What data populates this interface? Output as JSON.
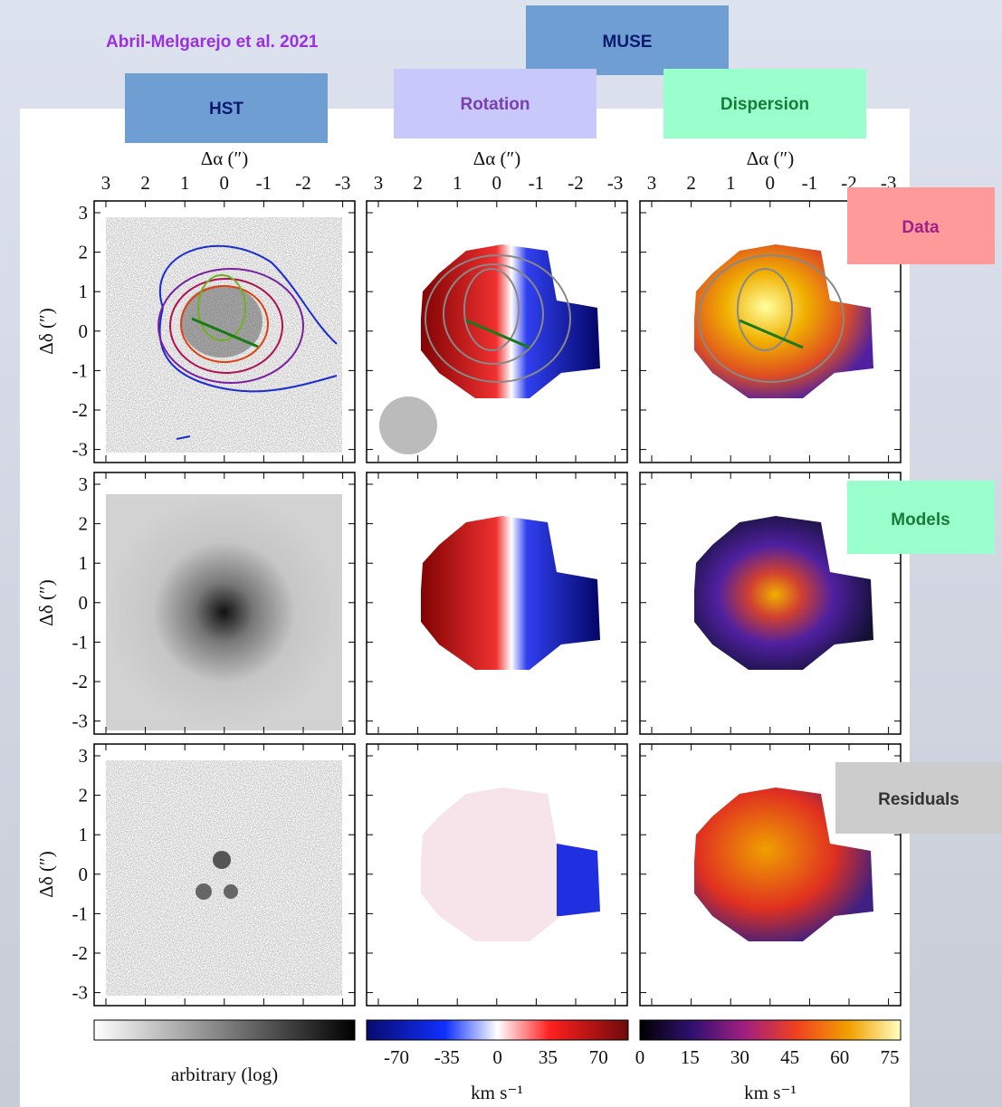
{
  "citation": "Abril-Melgarejo et al. 2021",
  "labels": {
    "muse": "MUSE",
    "hst": "HST",
    "rotation": "Rotation",
    "dispersion": "Dispersion",
    "data": "Data",
    "models": "Models",
    "residuals": "Residuals"
  },
  "figure": {
    "x_axis_label": "Δα (″)",
    "y_axis_label": "Δδ (″)",
    "ticks": [
      "3",
      "2",
      "1",
      "0",
      "-1",
      "-2",
      "-3"
    ],
    "colorbars": [
      {
        "label": "arbitrary (log)"
      },
      {
        "ticks": [
          "-70",
          "-35",
          "0",
          "35",
          "70"
        ],
        "unit": "km s⁻¹"
      },
      {
        "ticks": [
          "0",
          "15",
          "30",
          "45",
          "60",
          "75"
        ],
        "unit": "km s⁻¹"
      }
    ]
  }
}
